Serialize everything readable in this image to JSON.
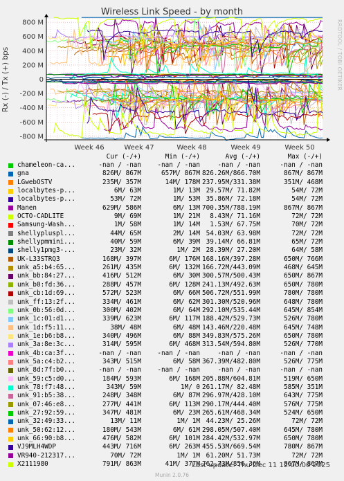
{
  "chart_data": {
    "type": "line",
    "title": "Wireless Link Speed - by month",
    "ylabel": "Rx (-) / Tx (+) bps",
    "ylim": [
      -850,
      850
    ],
    "yticks": [
      "800 M",
      "600 M",
      "400 M",
      "200 M",
      "0",
      "-200 M",
      "-400 M",
      "-600 M",
      "-800 M"
    ],
    "ytick_values": [
      800,
      600,
      400,
      200,
      0,
      -200,
      -400,
      -600,
      -800
    ],
    "xticks": [
      "Week 46",
      "Week 47",
      "Week 48",
      "Week 49",
      "Week 50"
    ],
    "grid": true,
    "columns": [
      "Cur (-/+)",
      "Min (-/+)",
      "Avg (-/+)",
      "Max (-/+)"
    ],
    "series": [
      {
        "name": "chameleon-ca...",
        "color": "#00cc00",
        "cur": "-nan / -nan",
        "min": "-nan / -nan",
        "avg": "-nan / -nan",
        "max": "-nan / -nan"
      },
      {
        "name": "gna",
        "color": "#0066b3",
        "cur": "826M/ 867M",
        "min": "657M/ 867M",
        "avg": "826.26M/866.70M",
        "max": "867M/ 867M"
      },
      {
        "name": "LGwebOSTV",
        "color": "#ff8000",
        "cur": "235M/ 357M",
        "min": "14M/ 178M",
        "avg": "237.95M/331.38M",
        "max": "351M/ 468M"
      },
      {
        "name": "localbytes-p...",
        "color": "#ffcc00",
        "cur": "6M/ 63M",
        "min": "1M/ 13M",
        "avg": "29.57M/ 71.82M",
        "max": "54M/ 72M"
      },
      {
        "name": "localbytes-p...",
        "color": "#330099",
        "cur": "53M/ 72M",
        "min": "1M/ 53M",
        "avg": "35.86M/ 72.18M",
        "max": "54M/ 72M"
      },
      {
        "name": "Manen",
        "color": "#990099",
        "cur": "629M/ 586M",
        "min": "6M/ 13M",
        "avg": "700.35M/788.19M",
        "max": "867M/ 867M"
      },
      {
        "name": "OCTO-CADLITE",
        "color": "#ccff00",
        "cur": "9M/ 69M",
        "min": "1M/ 21M",
        "avg": "8.43M/ 71.16M",
        "max": "72M/ 72M"
      },
      {
        "name": "Samsung-Wash...",
        "color": "#ff0000",
        "cur": "1M/ 58M",
        "min": "1M/ 14M",
        "avg": "1.53M/ 67.75M",
        "max": "70M/ 72M"
      },
      {
        "name": "shellypluspl...",
        "color": "#808080",
        "cur": "44M/ 65M",
        "min": "2M/ 14M",
        "avg": "54.03M/ 63.98M",
        "max": "72M/ 72M"
      },
      {
        "name": "shellypmmini...",
        "color": "#008f00",
        "cur": "40M/ 59M",
        "min": "6M/ 39M",
        "avg": "39.14M/ 66.81M",
        "max": "65M/ 72M"
      },
      {
        "name": "shelly1pmg3-...",
        "color": "#00487d",
        "cur": "23M/ 32M",
        "min": "1M/ 2M",
        "avg": "28.39M/ 27.20M",
        "max": "64M/ 58M"
      },
      {
        "name": "UK-L33STRQ3",
        "color": "#b35a00",
        "cur": "168M/ 397M",
        "min": "6M/ 176M",
        "avg": "168.16M/397.28M",
        "max": "650M/ 766M"
      },
      {
        "name": "unk_a5:b4:65...",
        "color": "#b38f00",
        "cur": "261M/ 435M",
        "min": "6M/ 132M",
        "avg": "166.72M/443.09M",
        "max": "468M/ 645M"
      },
      {
        "name": "unk_bb:84:27...",
        "color": "#6b006b",
        "cur": "416M/ 512M",
        "min": "6M/ 30M",
        "avg": "300.57M/500.43M",
        "max": "650M/ 867M"
      },
      {
        "name": "unk_b0:fd:36...",
        "color": "#8fb300",
        "cur": "288M/ 457M",
        "min": "6M/ 128M",
        "avg": "241.13M/492.63M",
        "max": "650M/ 780M"
      },
      {
        "name": "unk_cb:1d:69...",
        "color": "#b30000",
        "cur": "572M/ 523M",
        "min": "6M/ 66M",
        "avg": "506.72M/551.99M",
        "max": "780M/ 780M"
      },
      {
        "name": "unk_ff:13:2f...",
        "color": "#bebebe",
        "cur": "334M/ 461M",
        "min": "6M/ 62M",
        "avg": "301.30M/520.96M",
        "max": "648M/ 780M"
      },
      {
        "name": "unk_0b:56:0d...",
        "color": "#80ff80",
        "cur": "300M/ 402M",
        "min": "6M/ 64M",
        "avg": "292.10M/535.44M",
        "max": "645M/ 854M"
      },
      {
        "name": "unk_1c:01:d1...",
        "color": "#80c9ff",
        "cur": "339M/ 623M",
        "min": "6M/ 117M",
        "avg": "188.42M/529.73M",
        "max": "526M/ 780M"
      },
      {
        "name": "unk_1d:f5:11...",
        "color": "#ffc080",
        "cur": "38M/ 48M",
        "min": "6M/ 48M",
        "avg": "143.46M/220.48M",
        "max": "645M/ 748M"
      },
      {
        "name": "unk_1e:b6:b8...",
        "color": "#ffe680",
        "cur": "340M/ 496M",
        "min": "6M/ 88M",
        "avg": "349.83M/575.26M",
        "max": "650M/ 780M"
      },
      {
        "name": "unk_3a:8e:3c...",
        "color": "#aa80ff",
        "cur": "314M/ 595M",
        "min": "6M/ 468M",
        "avg": "313.54M/594.80M",
        "max": "526M/ 770M"
      },
      {
        "name": "unk_4b:ca:3f...",
        "color": "#ee00cc",
        "cur": "-nan / -nan",
        "min": "-nan / -nan",
        "avg": "-nan / -nan",
        "max": "-nan / -nan"
      },
      {
        "name": "unk_5a:c4:b2...",
        "color": "#ff8080",
        "cur": "343M/ 515M",
        "min": "6M/ 58M",
        "avg": "367.39M/482.80M",
        "max": "526M/ 775M"
      },
      {
        "name": "unk_8d:7f:b0...",
        "color": "#666600",
        "cur": "-nan / -nan",
        "min": "-nan / -nan",
        "avg": "-nan / -nan",
        "max": "-nan / -nan"
      },
      {
        "name": "unk_59:c5:d0...",
        "color": "#ffbfff",
        "cur": "184M/ 593M",
        "min": "6M/ 168M",
        "avg": "205.88M/604.81M",
        "max": "519M/ 650M"
      },
      {
        "name": "unk_78:f7:48...",
        "color": "#00ffcc",
        "cur": "343M/ 59M",
        "min": "1M/ 0",
        "avg": "261.17M/ 82.48M",
        "max": "585M/ 351M"
      },
      {
        "name": "unk_91:b5:38...",
        "color": "#cc6699",
        "cur": "248M/ 348M",
        "min": "6M/ 87M",
        "avg": "296.97M/428.10M",
        "max": "643M/ 775M"
      },
      {
        "name": "unk_07:46:e8...",
        "color": "#999900",
        "cur": "277M/ 441M",
        "min": "6M/ 113M",
        "avg": "290.17M/444.40M",
        "max": "576M/ 775M"
      },
      {
        "name": "unk_27:92:59...",
        "color": "#00cc00",
        "cur": "347M/ 481M",
        "min": "6M/ 23M",
        "avg": "265.61M/468.34M",
        "max": "524M/ 650M"
      },
      {
        "name": "unk_32:49:33...",
        "color": "#0066b3",
        "cur": "13M/ 11M",
        "min": "1M/ 1M",
        "avg": "44.23M/ 25.26M",
        "max": "72M/ 72M"
      },
      {
        "name": "unk_50:62:12...",
        "color": "#ff8000",
        "cur": "180M/ 543M",
        "min": "6M/ 61M",
        "avg": "298.05M/507.40M",
        "max": "645M/ 780M"
      },
      {
        "name": "unk_66:90:b8...",
        "color": "#ffcc00",
        "cur": "476M/ 582M",
        "min": "6M/ 101M",
        "avg": "284.42M/532.97M",
        "max": "650M/ 780M"
      },
      {
        "name": "VJ9MLH4WDP",
        "color": "#330099",
        "cur": "443M/ 716M",
        "min": "6M/ 263M",
        "avg": "455.53M/669.54M",
        "max": "780M/ 867M"
      },
      {
        "name": "VR940-212317...",
        "color": "#990099",
        "cur": "70M/ 72M",
        "min": "1M/ 1M",
        "avg": "61.20M/ 51.73M",
        "max": "72M/ 72M"
      },
      {
        "name": "X2111980",
        "color": "#ccff00",
        "cur": "791M/ 863M",
        "min": "41M/ 377M",
        "avg": "762.73M/856.36M",
        "max": "867M/ 867M"
      }
    ]
  },
  "side_label": "RRDTOOL / TOBI OETIKER",
  "last_update": "Last update: Thu Dec 11 12:00:00 2025",
  "footer": "Munin 2.0.76"
}
